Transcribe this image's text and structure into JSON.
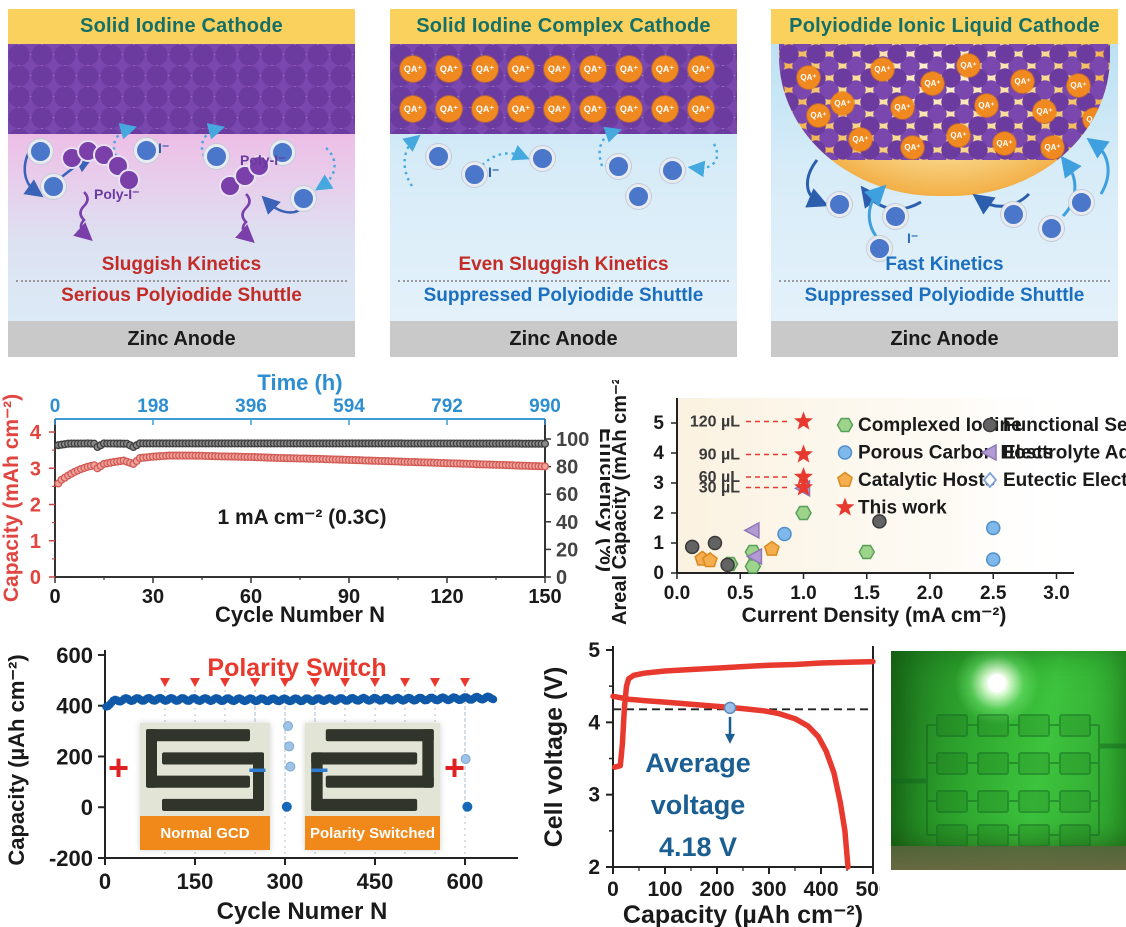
{
  "panels": [
    {
      "title": "Solid Iodine Cathode",
      "kinetics": "Sluggish Kinetics",
      "kinetics_color": "#C32B27",
      "shuttle": "Serious Polyiodide Shuttle",
      "shuttle_color": "#C32B27",
      "anode": "Zinc Anode",
      "iodide_label": "I⁻",
      "poly_label": "Poly-I⁻"
    },
    {
      "title": "Solid Iodine Complex Cathode",
      "kinetics": "Even Sluggish Kinetics",
      "kinetics_color": "#C32B27",
      "shuttle": "Suppressed Polyiodide Shuttle",
      "shuttle_color": "#1B6FBE",
      "anode": "Zinc Anode",
      "iodide_label": "I⁻",
      "qa_label": "QA⁺"
    },
    {
      "title": "Polyiodide Ionic Liquid Cathode",
      "kinetics": "Fast Kinetics",
      "kinetics_color": "#1B6FBE",
      "shuttle": "Suppressed Polyiodide Shuttle",
      "shuttle_color": "#1B6FBE",
      "anode": "Zinc Anode",
      "iodide_label": "I⁻",
      "qa_label": "QA⁺"
    }
  ],
  "colors": {
    "header_yellow": "#FAD15C",
    "header_teal": "#156F66",
    "iodine_purple": "#6C3BA0",
    "qa_orange": "#F0891F",
    "ion_blue": "#4A77C9",
    "anode_gray": "#C9C9C9",
    "red_accent": "#E8392E",
    "blue_accent": "#1B6FBE",
    "series_red": "#D96560",
    "series_blue": "#0F59A8"
  },
  "chart_data": [
    {
      "id": "cycling",
      "type": "line",
      "xlabel": "Cycle Number N",
      "xlabel_top": "Time (h)",
      "ylabel_left": "Capacity (mAh cm⁻²)",
      "ylabel_right": "Efficiency (%)",
      "annotation": "1 mA cm⁻² (0.3C)",
      "x_ticks": [
        0,
        30,
        60,
        90,
        120,
        150
      ],
      "top_ticks": [
        0,
        198,
        396,
        594,
        792,
        990
      ],
      "yleft_ticks": [
        0,
        1,
        2,
        3,
        4
      ],
      "yright_ticks": [
        0,
        20,
        40,
        60,
        80,
        100
      ],
      "xlim": [
        0,
        150
      ],
      "yleft_lim": [
        0,
        4.4
      ],
      "yright_lim": [
        0,
        110
      ],
      "series": [
        {
          "name": "Capacity",
          "axis": "left",
          "color": "#D96560",
          "points": [
            [
              1,
              2.58
            ],
            [
              2,
              2.68
            ],
            [
              4,
              2.8
            ],
            [
              6,
              2.9
            ],
            [
              8,
              2.98
            ],
            [
              10,
              3.04
            ],
            [
              12,
              3.08
            ],
            [
              13,
              3.0
            ],
            [
              15,
              3.12
            ],
            [
              18,
              3.17
            ],
            [
              21,
              3.21
            ],
            [
              24,
              3.12
            ],
            [
              26,
              3.28
            ],
            [
              30,
              3.32
            ],
            [
              35,
              3.35
            ],
            [
              42,
              3.35
            ],
            [
              50,
              3.33
            ],
            [
              60,
              3.31
            ],
            [
              70,
              3.28
            ],
            [
              80,
              3.26
            ],
            [
              90,
              3.23
            ],
            [
              100,
              3.2
            ],
            [
              110,
              3.17
            ],
            [
              120,
              3.14
            ],
            [
              130,
              3.11
            ],
            [
              140,
              3.08
            ],
            [
              150,
              3.05
            ]
          ]
        },
        {
          "name": "Efficiency",
          "axis": "right",
          "color": "#4F4F4F",
          "points": [
            [
              1,
              95.5
            ],
            [
              4,
              96.6
            ],
            [
              10,
              96.8
            ],
            [
              12,
              96.6
            ],
            [
              13,
              94.2
            ],
            [
              15,
              96.8
            ],
            [
              22,
              96.6
            ],
            [
              24,
              94.2
            ],
            [
              26,
              96.8
            ],
            [
              60,
              96.8
            ],
            [
              100,
              96.8
            ],
            [
              150,
              96.6
            ]
          ]
        }
      ]
    },
    {
      "id": "areal-capacity",
      "type": "scatter",
      "xlabel": "Current Density (mA cm⁻²)",
      "ylabel": "Areal Capacity (mAh cm⁻²)",
      "x_ticks": [
        0,
        0.5,
        1,
        1.5,
        2,
        2.5,
        3
      ],
      "y_ticks": [
        0,
        1,
        2,
        3,
        4,
        5
      ],
      "xlim": [
        0,
        3.2
      ],
      "ylim": [
        0,
        5.6
      ],
      "volume_annotations": [
        {
          "label": "120 µL",
          "y": 5.05
        },
        {
          "label": "90 µL",
          "y": 3.95
        },
        {
          "label": "60 µL",
          "y": 3.2
        },
        {
          "label": "30 µL",
          "y": 2.85
        }
      ],
      "series": [
        {
          "name": "Complexed Iodine",
          "marker": "hexagon",
          "color": "#9ED38B",
          "edge": "#57A05A",
          "points": [
            [
              0.42,
              0.3
            ],
            [
              0.6,
              0.7
            ],
            [
              0.6,
              0.22
            ],
            [
              1.0,
              2.0
            ],
            [
              1.5,
              0.7
            ]
          ]
        },
        {
          "name": "Porous Carbon Hosts",
          "marker": "circle",
          "color": "#7FB8EA",
          "edge": "#4F8FC9",
          "points": [
            [
              0.85,
              1.3
            ],
            [
              2.5,
              1.5
            ],
            [
              2.5,
              0.45
            ]
          ]
        },
        {
          "name": "Catalytic Hosts",
          "marker": "pentagon",
          "color": "#F4AE4E",
          "edge": "#D98A1F",
          "points": [
            [
              0.2,
              0.47
            ],
            [
              0.26,
              0.42
            ],
            [
              0.75,
              0.8
            ]
          ]
        },
        {
          "name": "Functional Separat",
          "marker": "circle",
          "color": "#636363",
          "edge": "#3A3A3A",
          "points": [
            [
              0.12,
              0.87
            ],
            [
              0.3,
              1.0
            ],
            [
              0.4,
              0.27
            ],
            [
              1.6,
              1.72
            ]
          ]
        },
        {
          "name": "Electrolyte Additiv",
          "marker": "triangle-left",
          "color": "#B29BD4",
          "edge": "#8F77B5",
          "points": [
            [
              0.6,
              1.42
            ],
            [
              0.62,
              0.55
            ],
            [
              1.0,
              2.82
            ]
          ]
        },
        {
          "name": "Eutectic Electrolyte",
          "marker": "diamond-open",
          "color": "#7FA3DC",
          "points": []
        },
        {
          "name": "This work",
          "marker": "star",
          "color": "#E8392E",
          "points": [
            [
              1.0,
              5.05
            ],
            [
              1.0,
              3.95
            ],
            [
              1.0,
              3.2
            ],
            [
              1.0,
              2.85
            ]
          ]
        }
      ],
      "legend_columns": [
        [
          "Complexed Iodine",
          "Porous Carbon Hosts",
          "Catalytic Hosts",
          "This work"
        ],
        [
          "Functional Separat",
          "Electrolyte Additiv",
          "Eutectic Electrolyte"
        ]
      ]
    },
    {
      "id": "polarity-switch",
      "type": "line",
      "title": "Polarity Switch",
      "title_color": "#E8392E",
      "xlabel": "Cycle Numer N",
      "ylabel": "Capacity (µAh cm⁻²)",
      "x_ticks": [
        0,
        150,
        300,
        450,
        600
      ],
      "y_ticks": [
        -200,
        0,
        200,
        400,
        600
      ],
      "xlim": [
        0,
        650
      ],
      "ylim": [
        -200,
        600
      ],
      "switch_cycles": [
        100,
        150,
        200,
        250,
        300,
        350,
        400,
        450,
        500,
        550,
        600
      ],
      "main_anchors": [
        [
          2,
          396
        ],
        [
          8,
          410
        ],
        [
          16,
          418
        ],
        [
          30,
          424
        ],
        [
          80,
          425
        ],
        [
          200,
          424
        ],
        [
          300,
          423
        ],
        [
          420,
          425
        ],
        [
          520,
          426
        ],
        [
          600,
          428
        ],
        [
          648,
          431
        ]
      ],
      "drop_points": [
        [
          253,
          150
        ],
        [
          256,
          105
        ],
        [
          258,
          62
        ],
        [
          305,
          320
        ],
        [
          307,
          240
        ],
        [
          309,
          160
        ],
        [
          352,
          100
        ],
        [
          355,
          62
        ],
        [
          601,
          190
        ]
      ],
      "zero_points": [
        [
          303,
          2
        ],
        [
          604,
          2
        ]
      ],
      "insets": [
        {
          "label": "Normal GCD",
          "left_sign": "+",
          "right_sign": "−"
        },
        {
          "label": "Polarity Switched",
          "left_sign": "−",
          "right_sign": "+"
        }
      ]
    },
    {
      "id": "gcd-voltage",
      "type": "line",
      "xlabel": "Capacity (µAh cm⁻²)",
      "ylabel": "Cell voltage (V)",
      "x_ticks": [
        0,
        100,
        200,
        300,
        400,
        500
      ],
      "y_ticks": [
        2,
        3,
        4,
        5
      ],
      "xlim": [
        0,
        500
      ],
      "ylim": [
        2,
        5
      ],
      "avg_line_v": 4.18,
      "annotation_lines": [
        "Average",
        "voltage",
        "4.18 V"
      ],
      "annotation_color": "#1B5E92",
      "series": [
        {
          "name": "charge",
          "color": "#E8392E",
          "points": [
            [
              3,
              3.38
            ],
            [
              14,
              3.4
            ],
            [
              18,
              3.7
            ],
            [
              22,
              4.2
            ],
            [
              26,
              4.5
            ],
            [
              30,
              4.6
            ],
            [
              40,
              4.65
            ],
            [
              60,
              4.68
            ],
            [
              100,
              4.71
            ],
            [
              150,
              4.73
            ],
            [
              200,
              4.75
            ],
            [
              250,
              4.77
            ],
            [
              300,
              4.79
            ],
            [
              350,
              4.8
            ],
            [
              400,
              4.82
            ],
            [
              450,
              4.83
            ],
            [
              500,
              4.84
            ]
          ]
        },
        {
          "name": "discharge",
          "color": "#E8392E",
          "points": [
            [
              0,
              4.36
            ],
            [
              30,
              4.32
            ],
            [
              60,
              4.3
            ],
            [
              100,
              4.28
            ],
            [
              150,
              4.25
            ],
            [
              200,
              4.22
            ],
            [
              250,
              4.19
            ],
            [
              290,
              4.16
            ],
            [
              320,
              4.12
            ],
            [
              350,
              4.05
            ],
            [
              375,
              3.95
            ],
            [
              395,
              3.8
            ],
            [
              410,
              3.6
            ],
            [
              425,
              3.3
            ],
            [
              437,
              2.9
            ],
            [
              446,
              2.5
            ],
            [
              452,
              2.0
            ]
          ]
        }
      ]
    }
  ]
}
